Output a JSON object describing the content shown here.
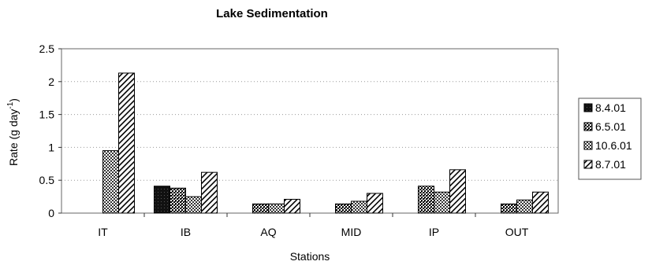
{
  "chart_data": {
    "type": "bar",
    "title": "Lake Sedimentation",
    "xlabel": "Stations",
    "ylabel": "Rate (g day",
    "ylabel_superscript": "-1",
    "ylabel_suffix": ")",
    "ylim": [
      0,
      2.5
    ],
    "yticks": [
      "0",
      "0.5",
      "1",
      "1.5",
      "2",
      "2.5"
    ],
    "categories": [
      "IT",
      "IB",
      "AQ",
      "MID",
      "IP",
      "OUT"
    ],
    "series": [
      {
        "name": "8.4.01",
        "pattern": "solid",
        "values": [
          0,
          0.41,
          0,
          0,
          0,
          0
        ]
      },
      {
        "name": "6.5.01",
        "pattern": "dense-check",
        "values": [
          0,
          0.38,
          0.14,
          0.14,
          0.41,
          0.14
        ]
      },
      {
        "name": "10.6.01",
        "pattern": "light-check",
        "values": [
          0.95,
          0.25,
          0.14,
          0.18,
          0.32,
          0.2
        ]
      },
      {
        "name": "8.7.01",
        "pattern": "diagonal",
        "values": [
          2.13,
          0.62,
          0.21,
          0.3,
          0.66,
          0.32
        ]
      }
    ],
    "grid": true,
    "legend": "right"
  }
}
